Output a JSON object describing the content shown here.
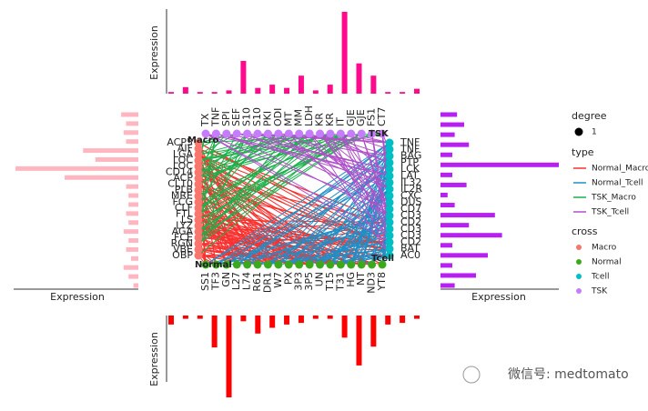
{
  "chart_data": [
    {
      "type": "bar",
      "orientation": "up",
      "axis_title": "Expression",
      "color": "#ff0a8c",
      "ylim": [
        0,
        100
      ],
      "categories": [
        "TX",
        "TNF",
        "SPI",
        "SEF",
        "S10",
        "S10",
        "PKI",
        "ODI",
        "MT",
        "MM",
        "LDH",
        "KR",
        "KR",
        "IT",
        "GJE",
        "GJE",
        "FS1",
        "CT7"
      ],
      "values": [
        2,
        8,
        2,
        2,
        4,
        40,
        7,
        11,
        7,
        22,
        4,
        11,
        100,
        37,
        22,
        2,
        2,
        6
      ]
    },
    {
      "type": "bar",
      "orientation": "left",
      "axis_title": "Expression",
      "color": "#ffb6c1",
      "xlim": [
        0,
        100
      ],
      "categories": [
        "ACP5",
        "AIF",
        "LGA",
        "LOC",
        "LOC",
        "CD14",
        "ACP",
        "CL10",
        "PLB",
        "MRE",
        "FCG",
        "CLF",
        "FTL",
        "LS",
        "LYZ",
        "AGA",
        "FCE",
        "RGN",
        "VBE",
        "OBP"
      ],
      "values": [
        14,
        10,
        12,
        10,
        45,
        35,
        100,
        60,
        10,
        8,
        8,
        10,
        8,
        12,
        8,
        10,
        6,
        12,
        8,
        4
      ]
    },
    {
      "type": "bar",
      "orientation": "right",
      "axis_title": "Expression",
      "color": "#b620f0",
      "xlim": [
        0,
        100
      ],
      "categories": [
        "TNF",
        "TNF",
        "BAG",
        "PTP",
        "LCK",
        "LAT",
        "IL32",
        "IL2R",
        "CXC",
        "DUS",
        "CD7",
        "CD3",
        "CD2",
        "CD3",
        "CD3",
        "CD2",
        "BAT",
        "AC0"
      ],
      "values": [
        14,
        20,
        12,
        24,
        10,
        100,
        10,
        22,
        6,
        12,
        46,
        24,
        52,
        10,
        40,
        10,
        30,
        12
      ]
    },
    {
      "type": "bar",
      "orientation": "down",
      "axis_title": "Expression",
      "color": "#ff0000",
      "ylim": [
        0,
        100
      ],
      "categories": [
        "SS1",
        "TF3",
        "GN",
        "L27",
        "L74",
        "R61",
        "DR1",
        "W7",
        "PX",
        "3P3",
        "3P5",
        "UN",
        "T15",
        "T31",
        "HG",
        "NT",
        "ND3",
        "YT8"
      ],
      "values": [
        11,
        4,
        4,
        39,
        100,
        7,
        22,
        15,
        11,
        9,
        4,
        4,
        27,
        61,
        38,
        11,
        9,
        4
      ]
    }
  ],
  "network": {
    "groups": [
      "Macro",
      "TSK",
      "Normal",
      "Tcell"
    ]
  },
  "legend": {
    "degree": {
      "title": "degree",
      "label": "1"
    },
    "type": {
      "title": "type",
      "items": [
        {
          "name": "Normal_Macro",
          "color": "#f8312f"
        },
        {
          "name": "Normal_Tcell",
          "color": "#1f8fc8"
        },
        {
          "name": "TSK_Macro",
          "color": "#19b34a"
        },
        {
          "name": "TSK_Tcell",
          "color": "#b050c8"
        }
      ]
    },
    "cross": {
      "title": "cross",
      "items": [
        {
          "name": "Macro",
          "color": "#f8766d"
        },
        {
          "name": "Normal",
          "color": "#3aaa1c"
        },
        {
          "name": "Tcell",
          "color": "#00bfc4"
        },
        {
          "name": "TSK",
          "color": "#c77cff"
        }
      ]
    }
  },
  "watermark": "微信号: medtomato"
}
